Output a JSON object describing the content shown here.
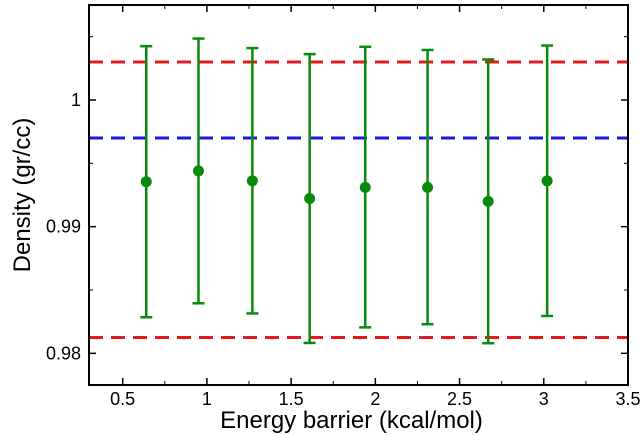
{
  "chart_data": {
    "type": "scatter",
    "title": "",
    "xlabel": "Energy barrier (kcal/mol)",
    "ylabel": "Density (gr/cc)",
    "xlim": [
      0.3,
      3.5
    ],
    "ylim": [
      0.9775,
      1.0075
    ],
    "grid": false,
    "x_ticks": [
      0.5,
      1,
      1.5,
      2,
      2.5,
      3,
      3.5
    ],
    "x_tick_labels": [
      "0.5",
      "1",
      "1.5",
      "2",
      "2.5",
      "3",
      "3.5"
    ],
    "y_ticks": [
      0.98,
      0.99,
      1.0
    ],
    "y_tick_labels": [
      "0.98",
      "0.99",
      "1"
    ],
    "series": [
      {
        "color": "#0a8a0a",
        "x": [
          0.64,
          0.95,
          1.27,
          1.61,
          1.94,
          2.31,
          2.67,
          3.02
        ],
        "y": [
          0.99355,
          0.9944,
          0.99362,
          0.99222,
          0.9931,
          0.9931,
          0.992,
          0.99362
        ],
        "y_err_low": [
          0.98285,
          0.98395,
          0.98315,
          0.98082,
          0.98205,
          0.9823,
          0.9808,
          0.98295
        ],
        "y_err_high": [
          1.00425,
          1.00485,
          1.0041,
          1.00362,
          1.0042,
          1.00395,
          1.0032,
          1.0043
        ]
      }
    ],
    "reference_lines": [
      {
        "y": 1.003,
        "color": "#e41a1c",
        "style": "dashed"
      },
      {
        "y": 0.997,
        "color": "#1a1adc",
        "style": "dashed"
      },
      {
        "y": 0.98125,
        "color": "#e41a1c",
        "style": "dashed"
      }
    ]
  }
}
